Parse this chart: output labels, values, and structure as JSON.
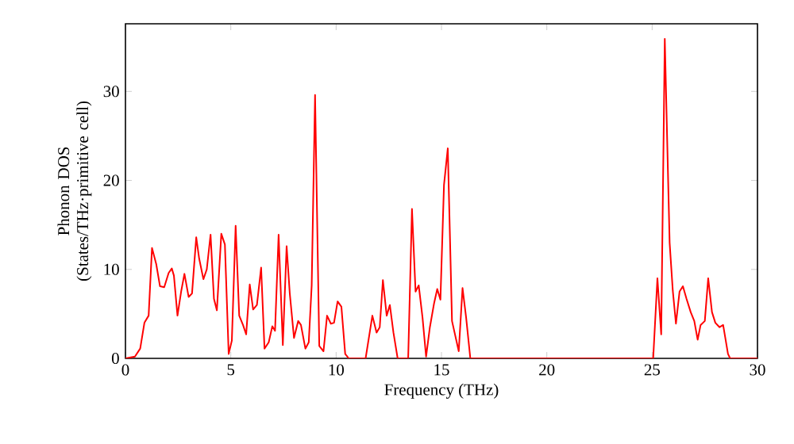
{
  "chart_data": {
    "type": "line",
    "xlabel": "Frequency (THz)",
    "ylabel": "Phonon DOS\n(States/THz·primitive cell)",
    "x": [
      0,
      0.45,
      0.7,
      0.9,
      1.1,
      1.26,
      1.46,
      1.64,
      1.84,
      2.05,
      2.2,
      2.3,
      2.47,
      2.65,
      2.8,
      3.0,
      3.16,
      3.36,
      3.5,
      3.7,
      3.86,
      4.04,
      4.2,
      4.34,
      4.55,
      4.72,
      4.9,
      5.05,
      5.23,
      5.4,
      5.58,
      5.73,
      5.9,
      6.06,
      6.24,
      6.44,
      6.6,
      6.8,
      6.97,
      7.1,
      7.27,
      7.47,
      7.65,
      7.8,
      8.0,
      8.2,
      8.33,
      8.54,
      8.7,
      8.84,
      9.0,
      9.2,
      9.4,
      9.57,
      9.75,
      9.9,
      10.07,
      10.25,
      10.43,
      10.6,
      11.4,
      11.72,
      11.92,
      12.07,
      12.22,
      12.4,
      12.55,
      12.72,
      12.92,
      13.42,
      13.6,
      13.77,
      13.92,
      14.1,
      14.27,
      14.45,
      14.65,
      14.8,
      14.95,
      15.12,
      15.3,
      15.5,
      15.82,
      16.0,
      16.17,
      16.37,
      25.05,
      25.25,
      25.43,
      25.6,
      25.83,
      25.98,
      26.13,
      26.3,
      26.46,
      26.63,
      26.83,
      27.0,
      27.16,
      27.3,
      27.5,
      27.66,
      27.84,
      28.0,
      28.2,
      28.37,
      28.6,
      28.7,
      30
    ],
    "series": [
      {
        "color": "#ff0000",
        "values": [
          0,
          0.2,
          1.1,
          4,
          4.8,
          12.4,
          10.6,
          8.1,
          8,
          9.6,
          10.1,
          9.3,
          4.8,
          7.6,
          9.5,
          6.9,
          7.3,
          13.6,
          11.2,
          8.9,
          10,
          13.9,
          6.7,
          5.4,
          14,
          12.8,
          0.5,
          2,
          14.9,
          4.8,
          3.75,
          2.7,
          8.3,
          5.5,
          6,
          10.2,
          1.1,
          1.8,
          3.6,
          3.1,
          13.9,
          1.5,
          12.6,
          7.3,
          2.3,
          4.2,
          3.75,
          1.1,
          1.8,
          8.2,
          29.6,
          1.4,
          0.8,
          4.8,
          3.9,
          4,
          6.4,
          5.8,
          0.5,
          0,
          0,
          4.8,
          2.9,
          3.5,
          8.8,
          4.8,
          6,
          2.9,
          0,
          0,
          16.8,
          7.5,
          8.2,
          4.6,
          0.2,
          3.5,
          6.2,
          7.8,
          6.6,
          19.5,
          23.6,
          4.2,
          0.8,
          7.9,
          4.6,
          0,
          0,
          9,
          2.7,
          35.9,
          13,
          7.6,
          3.9,
          7.5,
          8.1,
          6.7,
          5.2,
          4.2,
          2.1,
          3.75,
          4.2,
          9,
          5.2,
          4,
          3.5,
          3.75,
          0.5,
          0,
          0
        ]
      }
    ],
    "xlim": [
      0,
      30
    ],
    "ylim": [
      0,
      37.6
    ],
    "xticks": [
      0,
      5,
      10,
      15,
      20,
      25,
      30
    ],
    "yticks": [
      0,
      10,
      20,
      30
    ]
  }
}
